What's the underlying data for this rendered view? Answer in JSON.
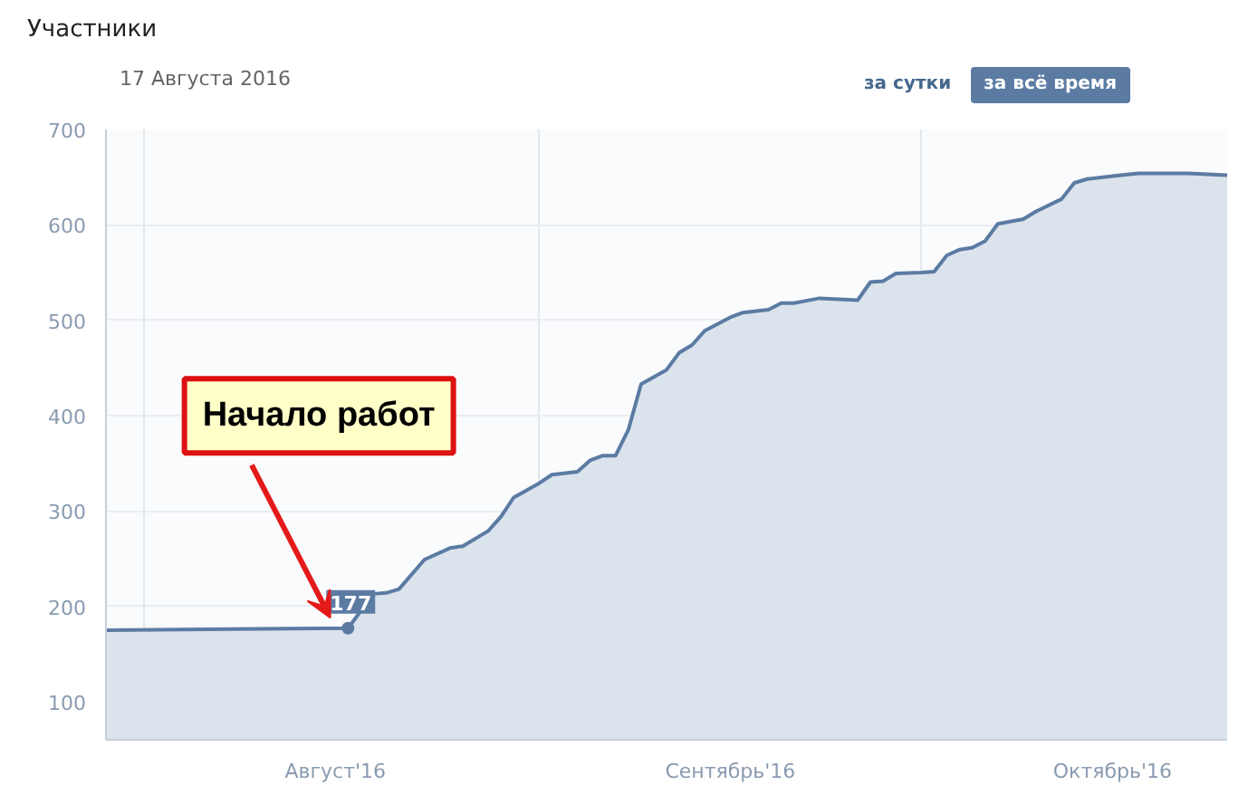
{
  "chart_data": {
    "type": "area",
    "title": "Участники",
    "subtitle": "17 Августа 2016",
    "annotations": [
      "за сутки",
      "за всё время",
      "Начало работ"
    ],
    "x": [
      "2016-07-29",
      "2016-08-17",
      "2016-08-19",
      "2016-08-20",
      "2016-08-21",
      "2016-08-23",
      "2016-08-25",
      "2016-08-26",
      "2016-08-28",
      "2016-08-29",
      "2016-08-30",
      "2016-09-01",
      "2016-09-02",
      "2016-09-04",
      "2016-09-05",
      "2016-09-06",
      "2016-09-07",
      "2016-09-08",
      "2016-09-09",
      "2016-09-11",
      "2016-09-12",
      "2016-09-13",
      "2016-09-14",
      "2016-09-16",
      "2016-09-17",
      "2016-09-19",
      "2016-09-20",
      "2016-09-21",
      "2016-09-23",
      "2016-09-26",
      "2016-09-27",
      "2016-09-28",
      "2016-09-29",
      "2016-10-01",
      "2016-10-02",
      "2016-10-03",
      "2016-10-04",
      "2016-10-05",
      "2016-10-06",
      "2016-10-07",
      "2016-10-09",
      "2016-10-10",
      "2016-10-12",
      "2016-10-13",
      "2016-10-14",
      "2016-10-16",
      "2016-10-18",
      "2016-10-22",
      "2016-10-25"
    ],
    "series": [
      {
        "color": "#5b7ba3",
        "values": [
          175,
          177,
          213,
          214,
          218,
          249,
          261,
          263,
          279,
          294,
          314,
          329,
          338,
          341,
          353,
          358,
          358,
          385,
          433,
          448,
          466,
          474,
          489,
          503,
          508,
          511,
          518,
          518,
          523,
          521,
          540,
          541,
          549,
          550,
          551,
          568,
          574,
          576,
          583,
          601,
          606,
          614,
          627,
          644,
          648,
          651,
          654,
          654,
          652
        ],
        "value_labels": [
          null,
          "177",
          null,
          null,
          null,
          null,
          null,
          null,
          null,
          null,
          null,
          null,
          null,
          null,
          null,
          null,
          null,
          null,
          null,
          null,
          null,
          null,
          null,
          null,
          null,
          null,
          null,
          null,
          null,
          null,
          null,
          null,
          null,
          null,
          null,
          null,
          null,
          null,
          null,
          null,
          null,
          null,
          null,
          null,
          null,
          null,
          null,
          null,
          null
        ]
      }
    ],
    "xlim": [
      "2016-07-29",
      "2016-10-25"
    ],
    "ylim": [
      60,
      700
    ],
    "yticks": [
      100,
      200,
      300,
      400,
      500,
      600,
      700
    ],
    "xticks": [
      {
        "value": "2016-08-01",
        "label": null
      },
      {
        "value": "2016-08-16",
        "label": "Август'16"
      },
      {
        "value": "2016-09-01",
        "label": null
      },
      {
        "value": "2016-09-16",
        "label": "Сентябрь'16"
      },
      {
        "value": "2016-10-01",
        "label": null
      },
      {
        "value": "2016-10-16",
        "label": "Октябрь'16"
      }
    ],
    "grid": true
  }
}
